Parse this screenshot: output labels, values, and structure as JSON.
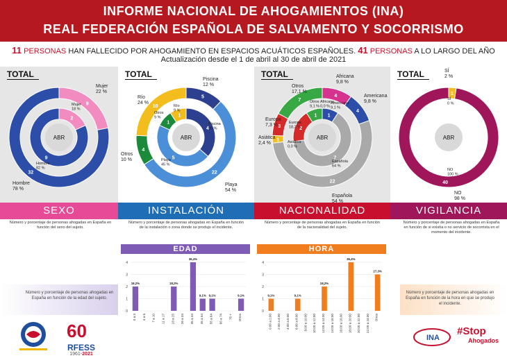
{
  "header": {
    "line1": "INFORME NACIONAL DE AHOGAMIENTOS (INA)",
    "line2": "REAL FEDERACIÓN ESPAÑOLA DE SALVAMENTO Y SOCORRISMO"
  },
  "summary": {
    "n1": "11",
    "w1": "PERSONAS",
    "t1": "HAN FALLECIDO POR AHOGAMIENTO EN ESPACIOS ACUÁTICOS ESPAÑOLES.",
    "n2": "41",
    "w2": "PERSONAS",
    "t2": "A LO LARGO DEL AÑO",
    "update": "Actualización desde el 1 de abril al 30 de abril de 2021"
  },
  "labels": {
    "total": "TOTAL",
    "abr": "ABR"
  },
  "sections": {
    "sexo": {
      "title": "SEXO",
      "desc": "Número y porcentaje de personas ahogadas en España en función del sexo del sujeto."
    },
    "instalacion": {
      "title": "INSTALACIÓN",
      "desc": "Número y porcentaje de personas ahogadas en España en función de la instalación o zona donde se produjo el incidente."
    },
    "nacionalidad": {
      "title": "NACIONALIDAD",
      "desc": "Número y porcentaje de personas ahogadas en España en función de la nacionalidad del sujeto."
    },
    "vigilancia": {
      "title": "VIGILANCIA",
      "desc": "Número y porcentaje de personas ahogadas en España en función de si existía o no servicio de socorrista en el momento del incidente."
    }
  },
  "bottom": {
    "edad_title": "EDAD",
    "hora_title": "HORA",
    "edad_note": "Número y porcentaje de personas ahogadas en España en función de la edad del sujeto.",
    "hora_note": "Número y porcentaje de personas ahogadas en España en función de la hora en que se produjo el incidente."
  },
  "logos": {
    "rfess": "RFESS",
    "rfess_years_a": "1961-",
    "rfess_years_b": "2021",
    "stop": "#Stop",
    "stop2": "Ahogados",
    "ina": "INA"
  },
  "colors": {
    "red": "#b5191f",
    "sexo": "#e74a97",
    "instalacion": "#1f6db5",
    "nacionalidad": "#c8102e",
    "vigilancia": "#a0165a",
    "edad": "#7e5cb5",
    "hora": "#f07e1e"
  },
  "chart_data": [
    {
      "type": "pie",
      "title": "SEXO",
      "series": [
        {
          "name": "TOTAL",
          "categories": [
            "Mujer",
            "Hombre"
          ],
          "values": [
            9,
            32
          ],
          "labels": [
            "Mujer\n22 %",
            "Hombre\n78 %"
          ]
        },
        {
          "name": "ABR",
          "categories": [
            "Mujer",
            "Hombre"
          ],
          "values": [
            2,
            9
          ],
          "labels": [
            "Mujer\n18 %",
            "Hombre\n82 %"
          ]
        }
      ]
    },
    {
      "type": "pie",
      "title": "INSTALACIÓN",
      "series": [
        {
          "name": "TOTAL",
          "categories": [
            "Piscina",
            "Playa",
            "Otros",
            "Río"
          ],
          "values": [
            5,
            22,
            4,
            10
          ],
          "labels": [
            "Piscina\n12 %",
            "Playa\n54 %",
            "Otros\n10 %",
            "Río\n24 %"
          ]
        },
        {
          "name": "ABR",
          "categories": [
            "Piscina",
            "Playa",
            "Otros",
            "Río"
          ],
          "values": [
            4,
            5,
            1,
            1
          ],
          "labels": [
            "Piscina\n36 %",
            "Playa\n45 %",
            "Otros\n9 %",
            "Río\n9 %"
          ]
        }
      ]
    },
    {
      "type": "pie",
      "title": "NACIONALIDAD",
      "series": [
        {
          "name": "TOTAL",
          "categories": [
            "Africana",
            "Americana",
            "Española",
            "Asiática",
            "Europa",
            "Otros"
          ],
          "values": [
            4,
            4,
            22,
            1,
            3,
            7
          ],
          "labels": [
            "Africana\n9,8 %",
            "Americana\n9,8 %",
            "Española\n54 %",
            "Asiática\n2,4 %",
            "Europa\n7,3 %",
            "Otros\n17,1 %"
          ]
        },
        {
          "name": "ABR",
          "categories": [
            "Africana",
            "Americana",
            "Española",
            "Asiática",
            "Europa",
            "Otros"
          ],
          "values": [
            0,
            1,
            7,
            0,
            2,
            1
          ],
          "labels": [
            "Africana\n0,0 %",
            "Americana\n9,1 %",
            "Española\n64 %",
            "Asiática\n0,0 %",
            "Europa\n18,2 %",
            "Otros\n9,1 %"
          ]
        }
      ]
    },
    {
      "type": "pie",
      "title": "VIGILANCIA",
      "series": [
        {
          "name": "TOTAL",
          "categories": [
            "SÍ",
            "NO"
          ],
          "values": [
            1,
            40
          ],
          "labels": [
            "SÍ\n2 %",
            "NO\n98 %"
          ]
        },
        {
          "name": "ABR",
          "categories": [
            "SÍ",
            "NO"
          ],
          "values": [
            0,
            11
          ],
          "labels": [
            "SÍ\n0 %",
            "NO\n100 %"
          ]
        }
      ]
    },
    {
      "type": "bar",
      "title": "EDAD",
      "categories": [
        "0 a 3",
        "4 a 6",
        "7 a 10",
        "11 a 17",
        "18 a 25",
        "26 a 34",
        "35 a 44",
        "45 a 54",
        "55 a 64",
        "65 a 74",
        "75 +",
        "Otros"
      ],
      "values": [
        2,
        0,
        0,
        0,
        2,
        0,
        4,
        1,
        1,
        0,
        0,
        1
      ],
      "data_labels": [
        "18,2%",
        "",
        "",
        "",
        "18,2%",
        "",
        "36,4%",
        "9,1%",
        "9,1%",
        "",
        "",
        "9,1%"
      ],
      "ylim": [
        0,
        4
      ],
      "yticks": [
        0,
        1,
        2,
        3,
        4
      ]
    },
    {
      "type": "bar",
      "title": "HORA",
      "categories": [
        "0:00 a 2:00",
        "2:00 a 4:00",
        "4:00 a 6:00",
        "6:00 a 8:00",
        "8:00 a 10:00",
        "10:00 a 12:00",
        "12:00 a 14:00",
        "14:00 a 16:00",
        "16:00 a 18:00",
        "18:00 a 20:00",
        "20:00 a 22:00",
        "22:00 a 24:00",
        "Otros"
      ],
      "values": [
        1,
        0,
        0,
        1,
        0,
        0,
        2,
        0,
        0,
        4,
        0,
        0,
        3
      ],
      "data_labels": [
        "9,1%",
        "",
        "",
        "9,1%",
        "",
        "",
        "18,2%",
        "",
        "",
        "36,4%",
        "",
        "",
        "27,3%"
      ],
      "ylim": [
        0,
        4
      ],
      "yticks": [
        0,
        1,
        2,
        3,
        4
      ]
    }
  ]
}
